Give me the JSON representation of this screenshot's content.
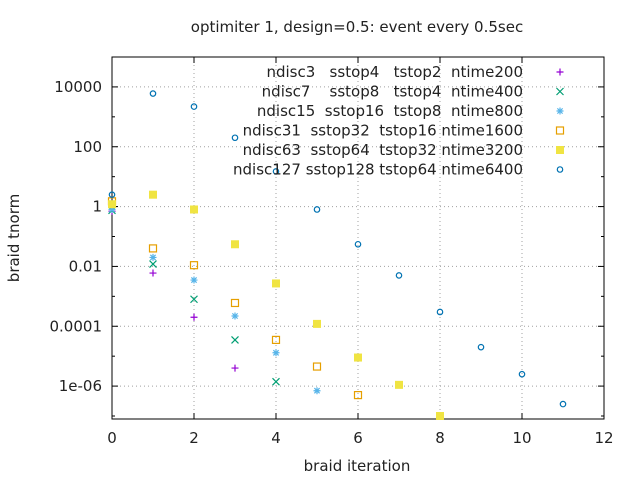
{
  "chart_data": {
    "type": "scatter",
    "title": "optimiter 1, design=0.5: event every 0.5sec",
    "xlabel": "braid iteration",
    "ylabel": "braid tnorm",
    "xlim": [
      0,
      12
    ],
    "ylim_log10": [
      -7.1,
      5
    ],
    "y_scale": "log",
    "grid": true,
    "legend_position": "top-right",
    "x_ticks": [
      "0",
      "2",
      "4",
      "6",
      "8",
      "10",
      "12"
    ],
    "y_ticks": [
      {
        "label": "1e-06",
        "value": 1e-06
      },
      {
        "label": "0.0001",
        "value": 0.0001
      },
      {
        "label": "0.01",
        "value": 0.01
      },
      {
        "label": "1",
        "value": 1
      },
      {
        "label": "100",
        "value": 100
      },
      {
        "label": "10000",
        "value": 10000
      }
    ],
    "series": [
      {
        "name": "ndisc3   sstop4   tstop2  ntime200",
        "color": "#9400d3",
        "marker": "plus",
        "points": [
          [
            0,
            0.7
          ],
          [
            1,
            0.006
          ],
          [
            2,
            0.0002
          ],
          [
            3,
            4e-06
          ]
        ]
      },
      {
        "name": "ndisc7    sstop8   tstop4  ntime400",
        "color": "#009e73",
        "marker": "cross",
        "points": [
          [
            0,
            0.75
          ],
          [
            1,
            0.012
          ],
          [
            2,
            0.0008
          ],
          [
            3,
            3.5e-05
          ],
          [
            4,
            1.4e-06
          ]
        ]
      },
      {
        "name": "ndisc15  sstop16  tstop8  ntime800",
        "color": "#56b4e9",
        "marker": "star",
        "points": [
          [
            0,
            0.8
          ],
          [
            1,
            0.02
          ],
          [
            2,
            0.0035
          ],
          [
            3,
            0.00022
          ],
          [
            4,
            1.3e-05
          ],
          [
            5,
            7e-07
          ]
        ]
      },
      {
        "name": "ndisc31  sstop32  tstop16 ntime1600",
        "color": "#e69f00",
        "marker": "square",
        "points": [
          [
            0,
            1.5
          ],
          [
            1,
            0.04
          ],
          [
            2,
            0.011
          ],
          [
            3,
            0.0006
          ],
          [
            4,
            3.5e-05
          ],
          [
            5,
            4.5e-06
          ],
          [
            6,
            5e-07
          ]
        ]
      },
      {
        "name": "ndisc63  sstop64  tstop32 ntime3200",
        "color": "#f0e442",
        "marker": "filled-square",
        "points": [
          [
            0,
            1.2
          ],
          [
            1,
            2.5
          ],
          [
            2,
            0.8
          ],
          [
            3,
            0.055
          ],
          [
            4,
            0.0027
          ],
          [
            5,
            0.00012
          ],
          [
            6,
            9e-06
          ],
          [
            7,
            1.1e-06
          ],
          [
            8,
            1e-07
          ]
        ]
      },
      {
        "name": "ndisc127 sstop128 tstop64 ntime6400",
        "color": "#0072b2",
        "marker": "circle",
        "points": [
          [
            0,
            2.5
          ],
          [
            1,
            6000
          ],
          [
            2,
            2200
          ],
          [
            3,
            200
          ],
          [
            4,
            15
          ],
          [
            5,
            0.8
          ],
          [
            6,
            0.055
          ],
          [
            7,
            0.005
          ],
          [
            8,
            0.0003
          ],
          [
            9,
            2e-05
          ],
          [
            10,
            2.5e-06
          ],
          [
            11,
            2.5e-07
          ]
        ]
      }
    ]
  }
}
